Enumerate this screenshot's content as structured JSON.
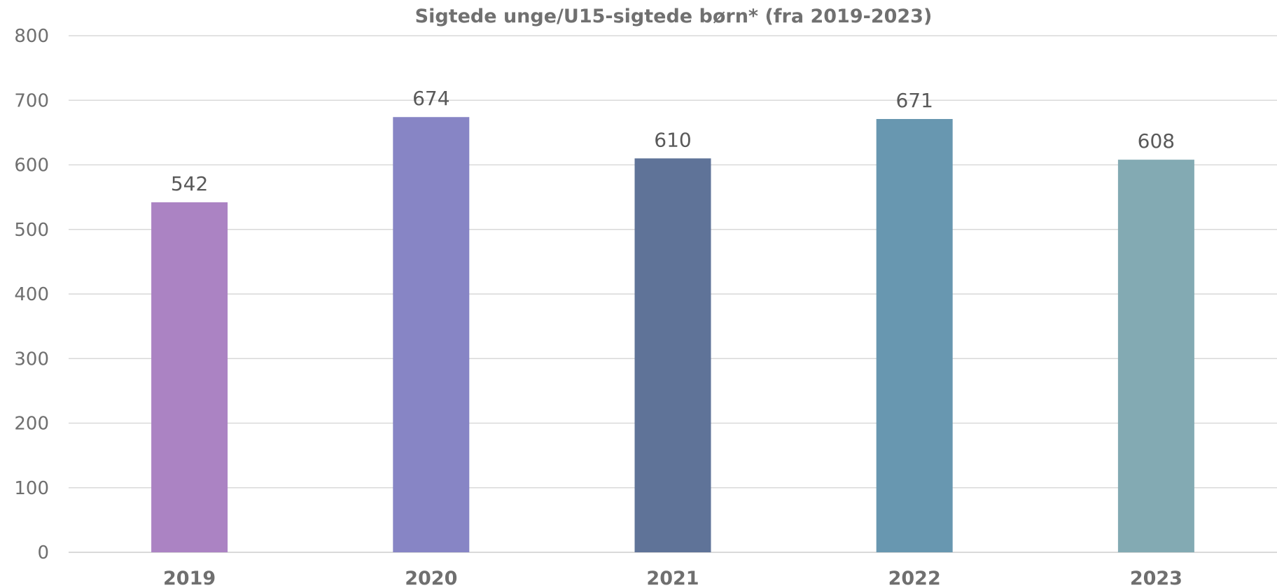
{
  "chart_data": {
    "type": "bar",
    "title": "Sigtede unge/U15-sigtede børn* (fra 2019-2023)",
    "xlabel": "",
    "ylabel": "",
    "categories": [
      "2019",
      "2020",
      "2021",
      "2022",
      "2023"
    ],
    "values": [
      542,
      674,
      610,
      671,
      608
    ],
    "data_labels": [
      "542",
      "674",
      "610",
      "671",
      "608"
    ],
    "bar_colors": [
      "#ab83c3",
      "#8785c5",
      "#5f7398",
      "#6897b0",
      "#83aab3"
    ],
    "ylim": [
      0,
      800
    ],
    "y_ticks": [
      0,
      100,
      200,
      300,
      400,
      500,
      600,
      700,
      800
    ],
    "y_tick_labels": [
      "0",
      "100",
      "200",
      "300",
      "400",
      "500",
      "600",
      "700",
      "800"
    ],
    "grid": true,
    "legend": "none"
  }
}
